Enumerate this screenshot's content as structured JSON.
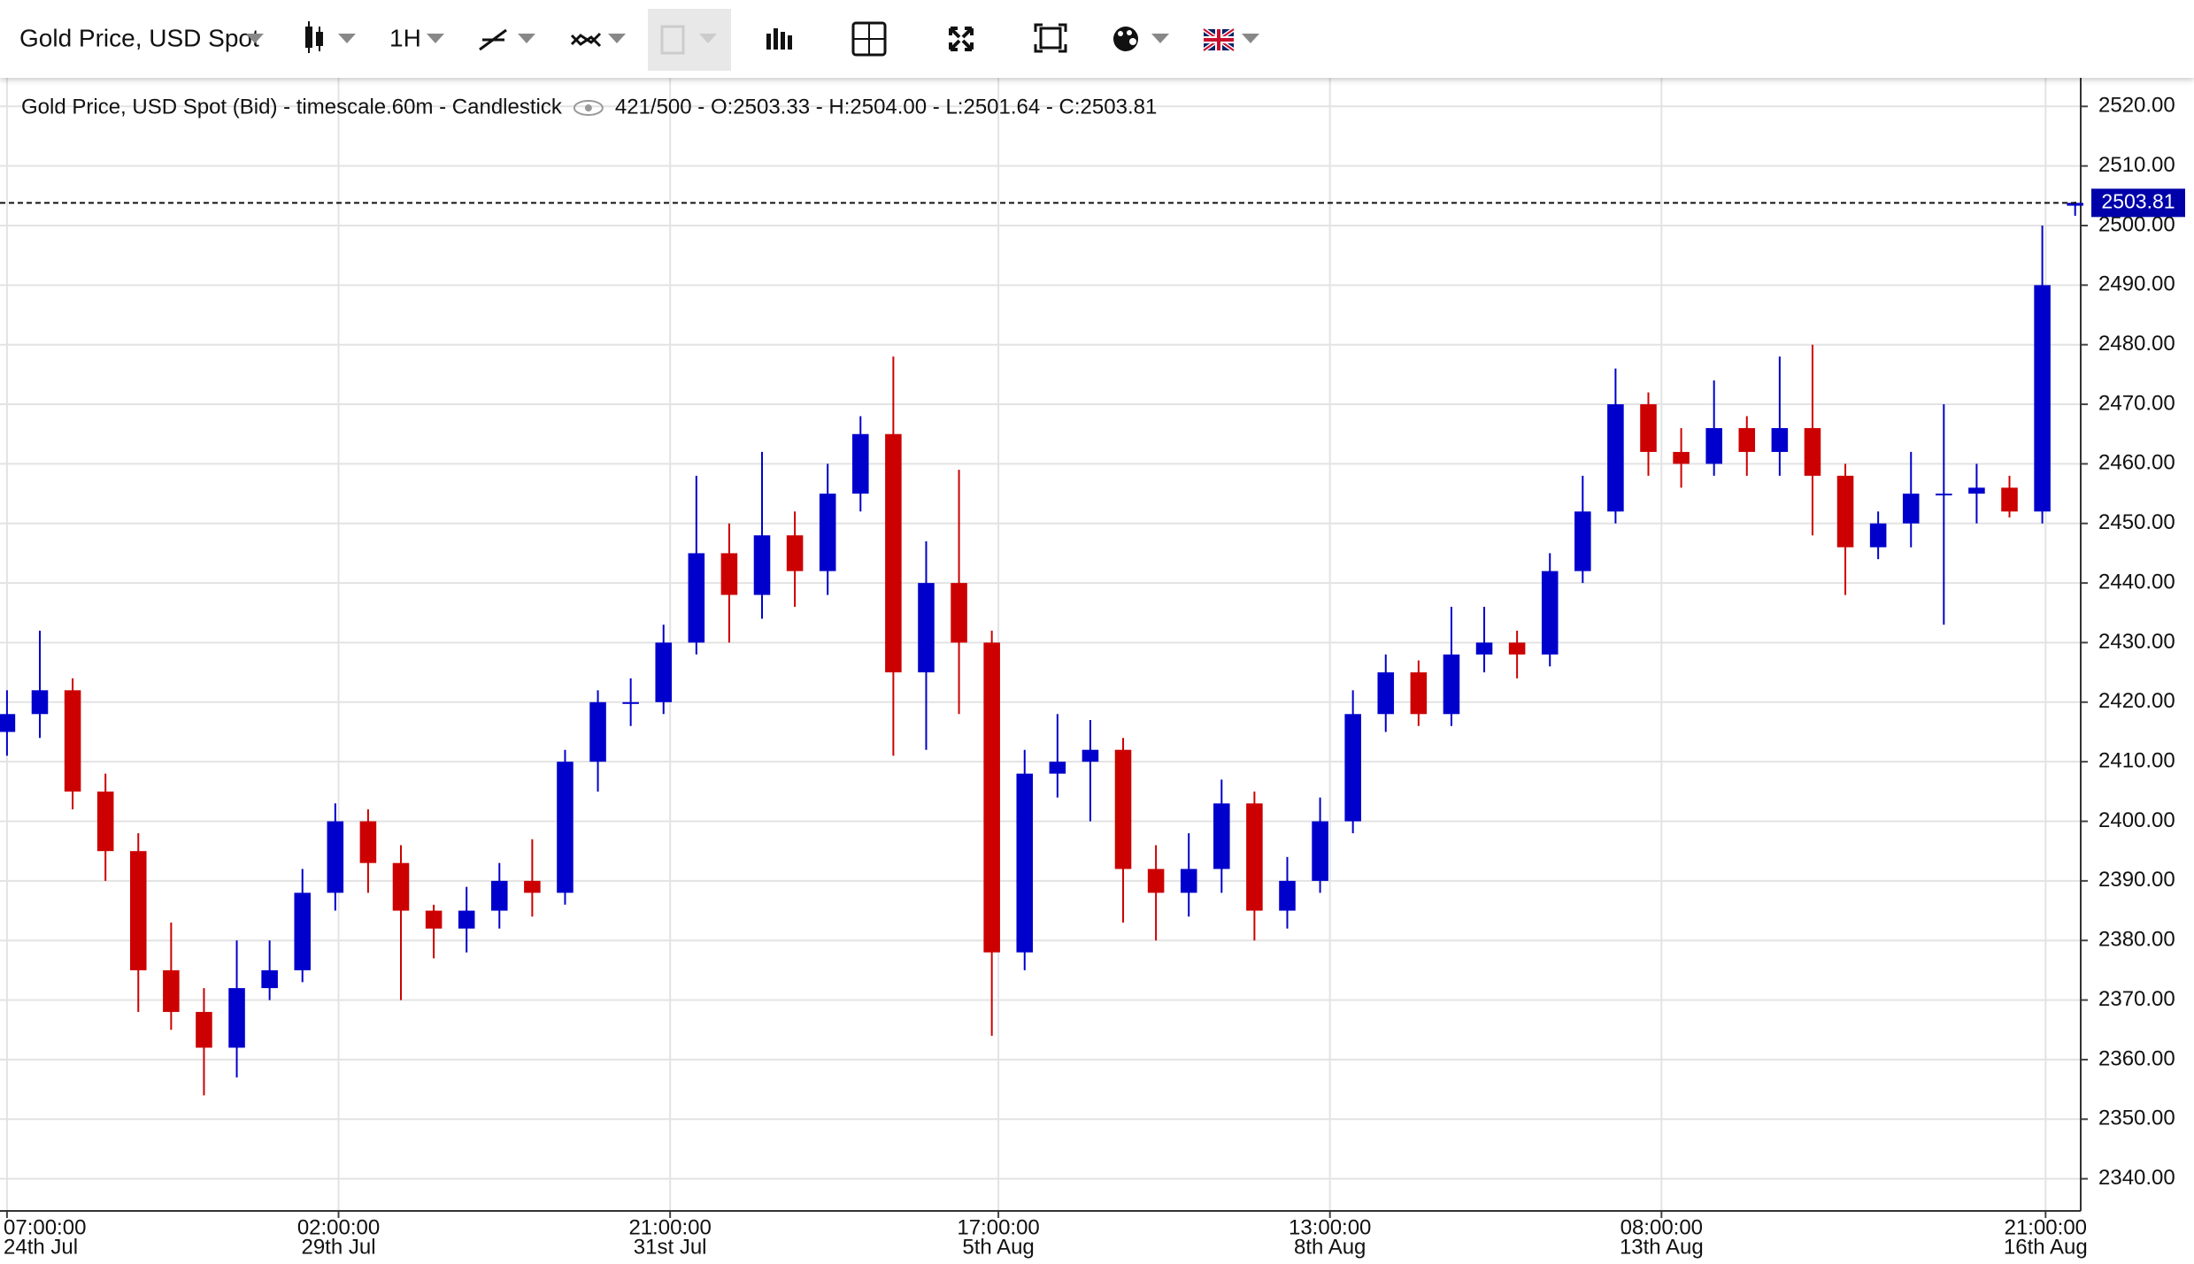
{
  "toolbar": {
    "symbol": "Gold Price, USD Spot",
    "interval": "1H"
  },
  "chart_data": {
    "type": "candlestick",
    "legend": {
      "title": "Gold Price, USD Spot (Bid) - timescale.60m - Candlestick",
      "info": "421/500 - O:2503.33 - H:2504.00 - L:2501.64 - C:2503.81"
    },
    "up_color": "#0000cc",
    "down_color": "#cc0000",
    "open": [
      2415,
      2418,
      2422,
      2405,
      2395,
      2375,
      2368,
      2362,
      2372,
      2375,
      2388,
      2400,
      2393,
      2385,
      2382,
      2385,
      2390,
      2388,
      2410,
      2420,
      2420,
      2430,
      2445,
      2438,
      2448,
      2442,
      2455,
      2465,
      2425,
      2440,
      2430,
      2378,
      2408,
      2410,
      2412,
      2392,
      2388,
      2392,
      2403,
      2385,
      2390,
      2400,
      2418,
      2425,
      2418,
      2428,
      2430,
      2428,
      2442,
      2452,
      2470,
      2462,
      2460,
      2466,
      2462,
      2466,
      2458,
      2446,
      2450,
      2455,
      2455,
      2456,
      2452,
      2503.33
    ],
    "high": [
      2422,
      2432,
      2424,
      2408,
      2398,
      2383,
      2372,
      2380,
      2380,
      2392,
      2403,
      2402,
      2396,
      2386,
      2389,
      2393,
      2397,
      2412,
      2422,
      2424,
      2433,
      2458,
      2450,
      2462,
      2452,
      2460,
      2468,
      2478,
      2447,
      2459,
      2432,
      2412,
      2418,
      2417,
      2414,
      2396,
      2398,
      2407,
      2405,
      2394,
      2404,
      2422,
      2428,
      2427,
      2436,
      2436,
      2432,
      2445,
      2458,
      2476,
      2472,
      2466,
      2474,
      2468,
      2478,
      2480,
      2460,
      2452,
      2462,
      2470,
      2460,
      2458,
      2500,
      2504
    ],
    "low": [
      2411,
      2414,
      2402,
      2390,
      2368,
      2365,
      2354,
      2357,
      2370,
      2373,
      2385,
      2388,
      2370,
      2377,
      2378,
      2382,
      2384,
      2386,
      2405,
      2416,
      2418,
      2428,
      2430,
      2434,
      2436,
      2438,
      2452,
      2411,
      2412,
      2418,
      2364,
      2375,
      2404,
      2400,
      2383,
      2380,
      2384,
      2388,
      2380,
      2382,
      2388,
      2398,
      2415,
      2416,
      2416,
      2425,
      2424,
      2426,
      2440,
      2450,
      2458,
      2456,
      2458,
      2458,
      2458,
      2448,
      2438,
      2444,
      2446,
      2433,
      2450,
      2451,
      2450,
      2501.64
    ],
    "close": [
      2418,
      2422,
      2405,
      2395,
      2375,
      2368,
      2362,
      2372,
      2375,
      2388,
      2400,
      2393,
      2385,
      2382,
      2385,
      2390,
      2388,
      2410,
      2420,
      2420,
      2430,
      2445,
      2438,
      2448,
      2442,
      2455,
      2465,
      2425,
      2440,
      2430,
      2378,
      2408,
      2410,
      2412,
      2392,
      2388,
      2392,
      2403,
      2385,
      2390,
      2400,
      2418,
      2425,
      2418,
      2428,
      2430,
      2428,
      2442,
      2452,
      2470,
      2462,
      2460,
      2466,
      2462,
      2466,
      2458,
      2446,
      2450,
      2455,
      2455,
      2456,
      2452,
      2490,
      2503.81
    ],
    "last_price": {
      "value": 2503.81,
      "label": "2503.81"
    },
    "xlim": [
      -0.213,
      63.17
    ],
    "xticks": [
      {
        "value": 0,
        "label": "07:00:00",
        "sublabel": "24th Jul"
      },
      {
        "value": 10.1,
        "label": "02:00:00",
        "sublabel": "29th Jul"
      },
      {
        "value": 20.2,
        "label": "21:00:00",
        "sublabel": "31st Jul"
      },
      {
        "value": 30.2,
        "label": "17:00:00",
        "sublabel": "5th Aug"
      },
      {
        "value": 40.3,
        "label": "13:00:00",
        "sublabel": "8th Aug"
      },
      {
        "value": 50.4,
        "label": "08:00:00",
        "sublabel": "13th Aug"
      },
      {
        "value": 62.1,
        "label": "21:00:00",
        "sublabel": "16th Aug"
      }
    ],
    "ylim": [
      2334.6,
      2524.2
    ],
    "yticks": [
      {
        "value": 2340,
        "label": "2340.00"
      },
      {
        "value": 2350,
        "label": "2350.00"
      },
      {
        "value": 2360,
        "label": "2360.00"
      },
      {
        "value": 2370,
        "label": "2370.00"
      },
      {
        "value": 2380,
        "label": "2380.00"
      },
      {
        "value": 2390,
        "label": "2390.00"
      },
      {
        "value": 2400,
        "label": "2400.00"
      },
      {
        "value": 2410,
        "label": "2410.00"
      },
      {
        "value": 2420,
        "label": "2420.00"
      },
      {
        "value": 2430,
        "label": "2430.00"
      },
      {
        "value": 2440,
        "label": "2440.00"
      },
      {
        "value": 2450,
        "label": "2450.00"
      },
      {
        "value": 2460,
        "label": "2460.00"
      },
      {
        "value": 2470,
        "label": "2470.00"
      },
      {
        "value": 2480,
        "label": "2480.00"
      },
      {
        "value": 2490,
        "label": "2490.00"
      },
      {
        "value": 2500,
        "label": "2500.00"
      },
      {
        "value": 2510,
        "label": "2510.00"
      },
      {
        "value": 2520,
        "label": "2520.00"
      }
    ],
    "grid": true
  }
}
